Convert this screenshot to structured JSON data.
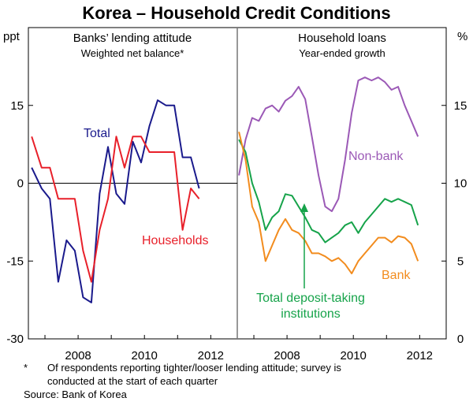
{
  "title": "Korea – Household Credit Conditions",
  "footnote": {
    "marker": "*",
    "line1": "Of respondents reporting tighter/looser lending attitude; survey is",
    "line2": "conducted at the start of each quarter",
    "source": "Source: Bank of Korea"
  },
  "chart_data": [
    {
      "type": "line",
      "title": "Banks’ lending attitude",
      "subtitle": "Weighted net balance*",
      "unit": "ppt",
      "ylim": [
        -30,
        30
      ],
      "yticks": [
        15,
        0,
        -15,
        -30
      ],
      "xlim": [
        2006.5,
        2012.8
      ],
      "xticks": [
        2008,
        2010,
        2012
      ],
      "series": [
        {
          "name": "Total",
          "color": "#1a1a8c",
          "x": [
            2006.6,
            2006.9,
            2007.15,
            2007.4,
            2007.65,
            2007.9,
            2008.15,
            2008.4,
            2008.65,
            2008.9,
            2009.15,
            2009.4,
            2009.65,
            2009.9,
            2010.15,
            2010.4,
            2010.65,
            2010.9,
            2011.15,
            2011.4,
            2011.65,
            2011.9,
            2012.15
          ],
          "y": [
            3,
            -1,
            -3,
            -19,
            -11,
            -13,
            -22,
            -23,
            -2,
            7,
            -2,
            -4,
            8,
            4,
            11,
            16,
            15,
            15,
            5,
            5,
            -1,
            null,
            null
          ]
        },
        {
          "name": "Households",
          "color": "#e8202a",
          "x": [
            2006.6,
            2006.9,
            2007.15,
            2007.4,
            2007.65,
            2007.9,
            2008.15,
            2008.4,
            2008.65,
            2008.9,
            2009.15,
            2009.4,
            2009.65,
            2009.9,
            2010.15,
            2010.4,
            2010.65,
            2010.9,
            2011.15,
            2011.4,
            2011.65,
            2011.9,
            2012.15
          ],
          "y": [
            9,
            3,
            3,
            -3,
            -3,
            -3,
            -13,
            -19,
            -9,
            -3,
            9,
            3,
            9,
            9,
            6,
            6,
            6,
            6,
            -9,
            -1,
            -3,
            null,
            null
          ]
        }
      ]
    },
    {
      "type": "line",
      "title": "Household loans",
      "subtitle": "Year-ended growth",
      "unit": "%",
      "ylim": [
        0,
        20
      ],
      "yticks": [
        15,
        10,
        5,
        0
      ],
      "xlim": [
        2006.5,
        2012.8
      ],
      "xticks": [
        2008,
        2010,
        2012
      ],
      "series": [
        {
          "name": "Non-bank",
          "color": "#9b59b6",
          "x": [
            2006.55,
            2006.75,
            2006.95,
            2007.15,
            2007.35,
            2007.55,
            2007.75,
            2007.95,
            2008.15,
            2008.35,
            2008.55,
            2008.75,
            2008.95,
            2009.15,
            2009.35,
            2009.55,
            2009.75,
            2009.95,
            2010.15,
            2010.35,
            2010.55,
            2010.75,
            2010.95,
            2011.15,
            2011.35,
            2011.55,
            2011.75,
            2011.95
          ],
          "y": [
            10.5,
            12.8,
            14.2,
            14.0,
            14.8,
            15.0,
            14.6,
            15.3,
            15.6,
            16.2,
            15.4,
            13.0,
            10.5,
            8.5,
            8.2,
            9.0,
            11.5,
            14.5,
            16.6,
            16.8,
            16.6,
            16.8,
            16.5,
            16.0,
            16.2,
            15.0,
            14.0,
            13.0
          ]
        },
        {
          "name": "Total deposit-taking institutions",
          "color": "#16a34a",
          "x": [
            2006.55,
            2006.75,
            2006.95,
            2007.15,
            2007.35,
            2007.55,
            2007.75,
            2007.95,
            2008.15,
            2008.35,
            2008.55,
            2008.75,
            2008.95,
            2009.15,
            2009.35,
            2009.55,
            2009.75,
            2009.95,
            2010.15,
            2010.35,
            2010.55,
            2010.75,
            2010.95,
            2011.15,
            2011.35,
            2011.55,
            2011.75,
            2011.95
          ],
          "y": [
            12.8,
            12.0,
            10.0,
            8.8,
            7.0,
            7.8,
            8.2,
            9.3,
            9.2,
            8.5,
            7.8,
            7.0,
            6.8,
            6.2,
            6.5,
            6.8,
            7.3,
            7.5,
            6.8,
            7.5,
            8.0,
            8.5,
            9.0,
            8.8,
            9.0,
            8.8,
            8.6,
            7.3
          ]
        },
        {
          "name": "Bank",
          "color": "#f28c1e",
          "x": [
            2006.55,
            2006.75,
            2006.95,
            2007.15,
            2007.35,
            2007.55,
            2007.75,
            2007.95,
            2008.15,
            2008.35,
            2008.55,
            2008.75,
            2008.95,
            2009.15,
            2009.35,
            2009.55,
            2009.75,
            2009.95,
            2010.15,
            2010.35,
            2010.55,
            2010.75,
            2010.95,
            2011.15,
            2011.35,
            2011.55,
            2011.75,
            2011.95
          ],
          "y": [
            13.3,
            11.5,
            8.5,
            7.5,
            5.0,
            6.0,
            7.0,
            7.7,
            7.0,
            6.8,
            6.3,
            5.5,
            5.5,
            5.3,
            5.0,
            5.2,
            4.8,
            4.2,
            5.0,
            5.5,
            6.0,
            6.5,
            6.5,
            6.2,
            6.6,
            6.5,
            6.1,
            5.0
          ]
        }
      ]
    }
  ],
  "labels": {
    "total": "Total",
    "households": "Households",
    "non_bank": "Non-bank",
    "bank": "Bank",
    "tdti_line1": "Total deposit-taking",
    "tdti_line2": "institutions"
  }
}
